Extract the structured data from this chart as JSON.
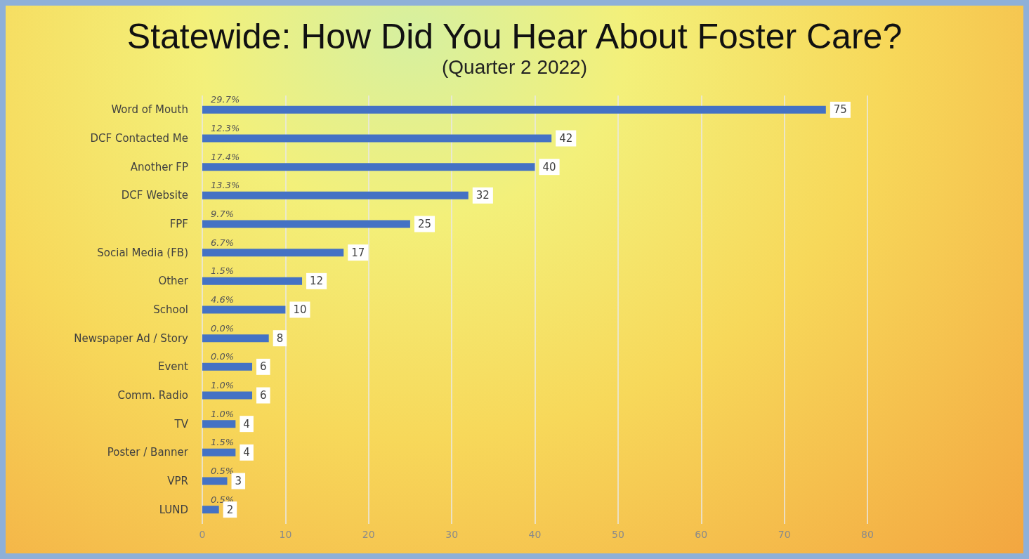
{
  "chart_data": {
    "type": "bar",
    "orientation": "horizontal",
    "title": "Statewide: How Did You Hear About Foster Care?",
    "subtitle": "(Quarter 2 2022)",
    "categories": [
      "Word of Mouth",
      "DCF Contacted Me",
      "Another FP",
      "DCF Website",
      "FPF",
      "Social Media (FB)",
      "Other",
      "School",
      "Newspaper Ad / Story",
      "Event",
      "Comm. Radio",
      "TV",
      "Poster / Banner",
      "VPR",
      "LUND"
    ],
    "values": [
      75,
      42,
      40,
      32,
      25,
      17,
      12,
      10,
      8,
      6,
      6,
      4,
      4,
      3,
      2
    ],
    "color": "#4472c4",
    "data_labels": true,
    "xlim": [
      0,
      80
    ],
    "xticks": [
      0,
      10,
      20,
      30,
      40,
      50,
      60,
      70,
      80
    ],
    "grid": "x",
    "annotations": [
      "29.7%",
      "12.3%",
      "17.4%",
      "13.3%",
      "9.7%",
      "6.7%",
      "1.5%",
      "4.6%",
      "0.0%",
      "0.0%",
      "1.0%",
      "1.0%",
      "1.5%",
      "0.5%",
      "0.5%"
    ]
  }
}
